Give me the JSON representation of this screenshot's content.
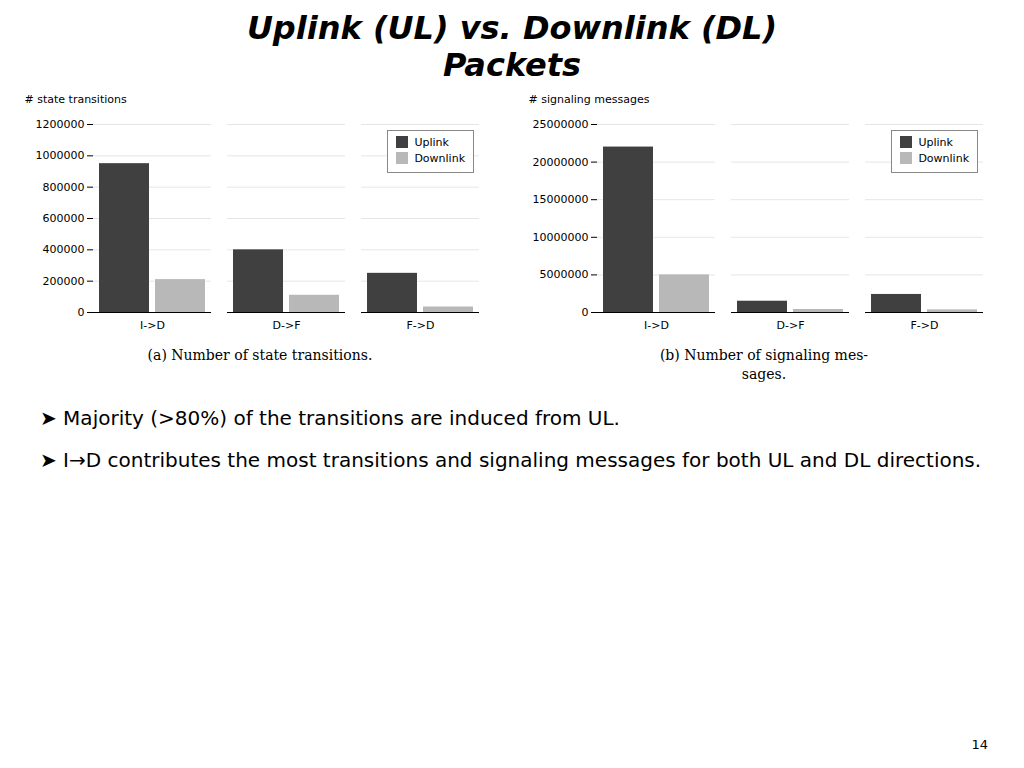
{
  "title": "Uplink (UL) vs. Downlink (DL)\nPackets",
  "annotations": [
    "➤ Majority (>80%) of the transitions are induced from UL.",
    "➤ I→D contributes the most transitions and signaling messages for both UL and DL directions.",
    "14"
  ],
  "chart_data": [
    {
      "type": "bar",
      "title": "(a) Number of state transitions.",
      "categories": [
        "I->D",
        "D->F",
        "F->D"
      ],
      "series": [
        {
          "name": "Uplink",
          "color": "#404040",
          "values": [
            950000,
            400000,
            250000
          ]
        },
        {
          "name": "Downlink",
          "color": "#b8b8b8",
          "values": [
            210000,
            110000,
            35000
          ]
        }
      ],
      "ylabel": "# state transitions",
      "ylim": [
        0,
        1200000
      ],
      "yticks": [
        0,
        200000,
        400000,
        600000,
        800000,
        1000000,
        1200000
      ],
      "grid": true,
      "legend": "upper right"
    },
    {
      "type": "bar",
      "title": "(b) Number of signaling mes-\nsages.",
      "categories": [
        "I->D",
        "D->F",
        "F->D"
      ],
      "series": [
        {
          "name": "Uplink",
          "color": "#404040",
          "values": [
            22000000,
            1500000,
            2400000
          ]
        },
        {
          "name": "Downlink",
          "color": "#b8b8b8",
          "values": [
            5000000,
            400000,
            350000
          ]
        }
      ],
      "ylabel": "# signaling messages",
      "ylim": [
        0,
        25000000
      ],
      "yticks": [
        0,
        5000000,
        10000000,
        15000000,
        20000000,
        25000000
      ],
      "grid": true,
      "legend": "upper right"
    }
  ]
}
